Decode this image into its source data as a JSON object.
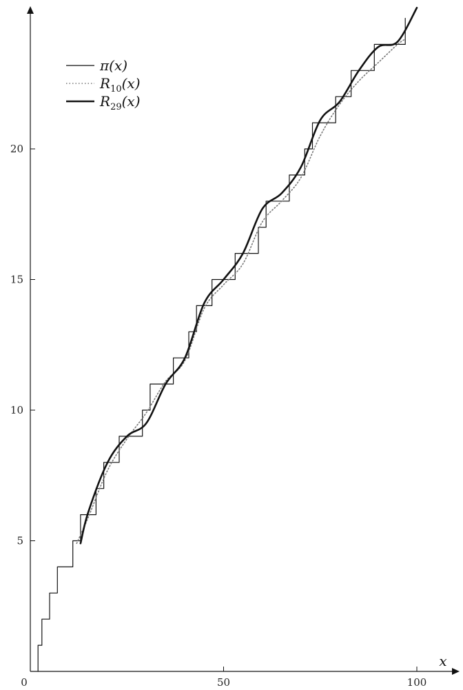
{
  "chart_data": {
    "type": "line",
    "title": "",
    "xlabel": "x",
    "ylabel": "",
    "xlim": [
      0,
      110
    ],
    "ylim": [
      0,
      25.5
    ],
    "x_ticks": [
      {
        "value": 0,
        "label": "0"
      },
      {
        "value": 50,
        "label": "50"
      },
      {
        "value": 100,
        "label": "100"
      }
    ],
    "y_ticks": [
      {
        "value": 5,
        "label": "5"
      },
      {
        "value": 10,
        "label": "10"
      },
      {
        "value": 15,
        "label": "15"
      },
      {
        "value": 20,
        "label": "20"
      }
    ],
    "grid": false,
    "legend_position": "top-left",
    "series": [
      {
        "name": "π(x)",
        "legend_base": "π",
        "legend_sub": "",
        "legend_arg": "(x)",
        "kind": "step",
        "style": "thin",
        "color": "#111111",
        "x_range": [
          3,
          97
        ],
        "primes": [
          2,
          3,
          5,
          7,
          11,
          13,
          17,
          19,
          23,
          29,
          31,
          37,
          41,
          43,
          47,
          53,
          59,
          61,
          67,
          71,
          73,
          79,
          83,
          89,
          97
        ]
      },
      {
        "name": "R10(x)",
        "legend_base": "R",
        "legend_sub": "10",
        "legend_arg": "(x)",
        "kind": "smooth",
        "style": "dotted",
        "color": "#777777",
        "x_range": [
          12,
          97
        ],
        "y_at_x": [
          [
            12,
            4.9
          ],
          [
            15,
            5.9
          ],
          [
            20,
            7.7
          ],
          [
            25,
            8.9
          ],
          [
            30,
            9.9
          ],
          [
            35,
            11.1
          ],
          [
            40,
            11.9
          ],
          [
            45,
            13.9
          ],
          [
            50,
            14.8
          ],
          [
            55,
            15.6
          ],
          [
            60,
            17.2
          ],
          [
            65,
            18.0
          ],
          [
            70,
            18.9
          ],
          [
            75,
            20.5
          ],
          [
            80,
            21.7
          ],
          [
            85,
            22.6
          ],
          [
            90,
            23.3
          ],
          [
            95,
            24.0
          ],
          [
            97,
            24.2
          ]
        ]
      },
      {
        "name": "R29(x)",
        "legend_base": "R",
        "legend_sub": "29",
        "legend_arg": "(x)",
        "kind": "smooth",
        "style": "thick",
        "color": "#111111",
        "x_range": [
          13,
          100
        ],
        "y_at_x": [
          [
            13,
            4.9
          ],
          [
            15,
            6.1
          ],
          [
            20,
            8.0
          ],
          [
            25,
            9.0
          ],
          [
            30,
            9.5
          ],
          [
            35,
            11.0
          ],
          [
            40,
            12.0
          ],
          [
            45,
            14.1
          ],
          [
            50,
            15.0
          ],
          [
            55,
            16.0
          ],
          [
            60,
            17.7
          ],
          [
            65,
            18.3
          ],
          [
            70,
            19.3
          ],
          [
            75,
            21.1
          ],
          [
            80,
            21.8
          ],
          [
            85,
            23.0
          ],
          [
            90,
            23.9
          ],
          [
            95,
            24.1
          ],
          [
            100,
            25.4
          ]
        ]
      }
    ]
  }
}
